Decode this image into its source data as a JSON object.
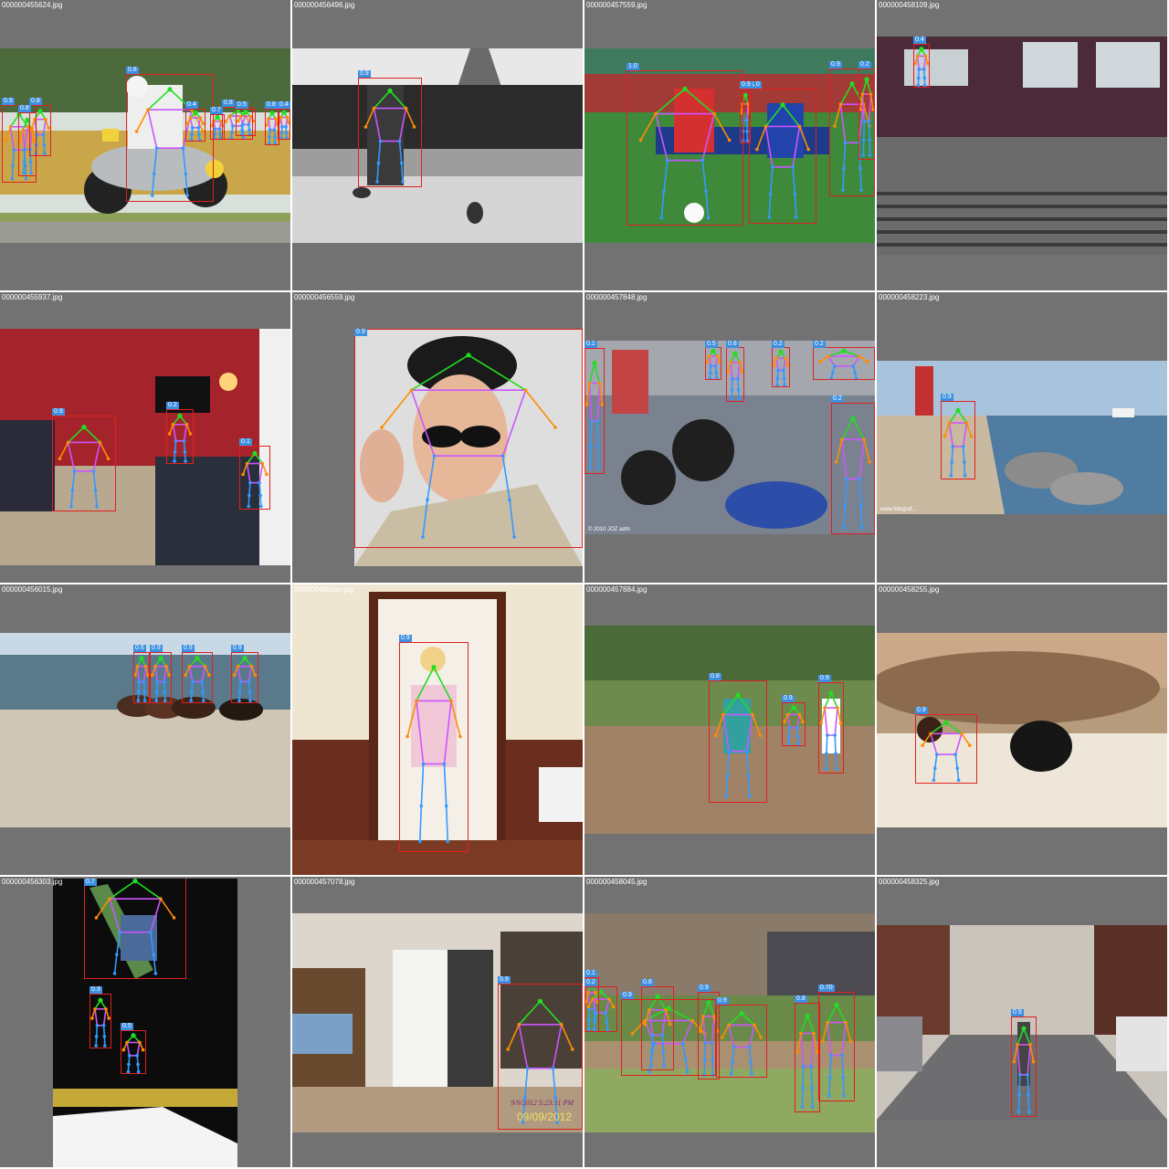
{
  "palette": {
    "background": "#727272",
    "separator": "#ffffff",
    "title": "#ffffff",
    "box": "#e02020",
    "label_bg": "#3d8fe0",
    "head_kp": "#22dd22",
    "arm_kp": "#ff8c00",
    "leg_kp": "#3399ff",
    "torso_link": "#cc55ff"
  },
  "tiles": [
    {
      "filename": "000000455624.jpg",
      "scene": "motorcycle-race",
      "labels": [
        "0.9",
        "0.8",
        "0.8",
        "0.8",
        "0.4",
        "0.7",
        "0.8",
        "0.5",
        "0.8",
        "0.4"
      ]
    },
    {
      "filename": "000000456496.jpg",
      "scene": "eiffel-bench",
      "labels": [
        "0.9"
      ]
    },
    {
      "filename": "000000457559.jpg",
      "scene": "soccer",
      "labels": [
        "1.0",
        "1.0",
        "0.9",
        "0.9",
        "0.2"
      ]
    },
    {
      "filename": "000000458109.jpg",
      "scene": "train-platform",
      "labels": [
        "0.4"
      ]
    },
    {
      "filename": "000000455937.jpg",
      "scene": "living-room",
      "labels": [
        "0.9",
        "0.2",
        "0.1"
      ]
    },
    {
      "filename": "000000456559.jpg",
      "scene": "sunglasses-portrait",
      "labels": [
        "0.9"
      ]
    },
    {
      "filename": "000000457848.jpg",
      "scene": "motorcycles-parked",
      "labels": [
        "0.1",
        "0.5",
        "0.8",
        "0.2",
        "0.2",
        "0.2"
      ],
      "caption": "© 2010 JOZ adm"
    },
    {
      "filename": "000000458223.jpg",
      "scene": "lighthouse-pier",
      "labels": [
        "0.9"
      ],
      "caption": "www.fotograf..."
    },
    {
      "filename": "000000456015.jpg",
      "scene": "beach-horses",
      "labels": [
        "0.6",
        "0.9",
        "0.9",
        "0.9"
      ]
    },
    {
      "filename": "000000456xxx.jpg",
      "scene": "fridge-girl",
      "labels": [
        "0.9"
      ]
    },
    {
      "filename": "000000457884.jpg",
      "scene": "baseball",
      "labels": [
        "0.8",
        "0.9",
        "0.9"
      ]
    },
    {
      "filename": "000000458255.jpg",
      "scene": "bed-cat",
      "labels": [
        "0.9"
      ]
    },
    {
      "filename": "000000456303.jpg",
      "scene": "snowboard-night",
      "labels": [
        "0.7",
        "0.3",
        "0.5"
      ]
    },
    {
      "filename": "000000457078.jpg",
      "scene": "cluttered-room",
      "labels": [
        "0.9"
      ],
      "date_text": "9/9/2012 5:23:11 PM",
      "date_text2": "09/09/2012"
    },
    {
      "filename": "000000458045.jpg",
      "scene": "baseball-field",
      "labels": [
        "0.1",
        "0.2",
        "0.9",
        "0.8",
        "0.9",
        "0.9",
        "0.8",
        "0.70"
      ]
    },
    {
      "filename": "000000458325.jpg",
      "scene": "city-street",
      "labels": [
        "0.9"
      ]
    }
  ]
}
